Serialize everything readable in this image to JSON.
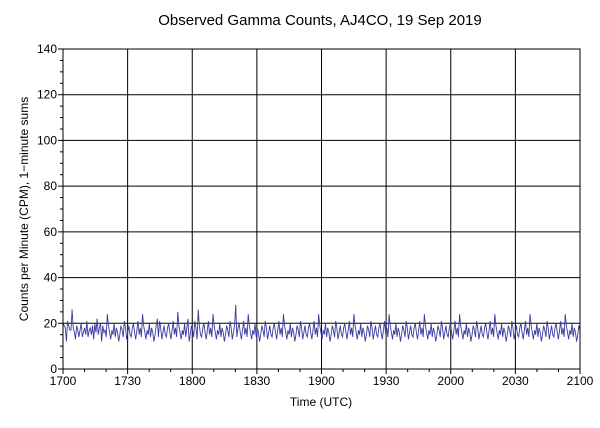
{
  "chart_data": {
    "type": "line",
    "title": "Observed Gamma Counts, AJ4CO, 19 Sep 2019",
    "xlabel": "Time (UTC)",
    "ylabel": "Counts per Minute (CPM), 1−minute sums",
    "x_range": [
      "1700",
      "2100"
    ],
    "ylim": [
      0,
      140
    ],
    "x_ticks": [
      "1700",
      "1730",
      "1800",
      "1830",
      "1900",
      "1930",
      "2000",
      "2030",
      "2100"
    ],
    "y_ticks": [
      0,
      20,
      40,
      60,
      80,
      100,
      120,
      140
    ],
    "grid": true,
    "legend": "none",
    "series": [
      {
        "color": "#3b3ba0",
        "values": [
          20,
          19,
          18,
          12,
          21,
          19,
          17,
          17,
          26,
          18,
          16,
          13,
          19,
          17,
          14,
          17,
          20,
          14,
          16,
          18,
          15,
          21,
          14,
          17,
          18,
          15,
          19,
          13,
          20,
          16,
          22,
          15,
          18,
          20,
          12,
          19,
          16,
          17,
          14,
          24,
          19,
          16,
          13,
          17,
          15,
          20,
          14,
          18,
          16,
          12,
          15,
          19,
          17,
          14,
          21,
          18,
          13,
          16,
          19,
          15,
          14,
          18,
          20,
          16,
          13,
          17,
          21,
          15,
          18,
          14,
          24,
          19,
          16,
          13,
          17,
          15,
          20,
          14,
          18,
          16,
          12,
          15,
          19,
          22,
          14,
          21,
          18,
          13,
          16,
          19,
          15,
          14,
          18,
          20,
          16,
          13,
          17,
          21,
          15,
          18,
          14,
          25,
          19,
          16,
          13,
          17,
          15,
          20,
          14,
          18,
          22,
          12,
          15,
          19,
          17,
          14,
          21,
          18,
          13,
          26,
          19,
          15,
          14,
          18,
          20,
          16,
          13,
          17,
          21,
          15,
          18,
          14,
          24,
          19,
          16,
          13,
          17,
          15,
          20,
          14,
          18,
          16,
          12,
          15,
          19,
          17,
          14,
          21,
          18,
          13,
          16,
          19,
          28,
          14,
          18,
          20,
          16,
          13,
          17,
          21,
          15,
          18,
          14,
          24,
          19,
          16,
          13,
          17,
          15,
          20,
          14,
          18,
          16,
          12,
          15,
          19,
          17,
          14,
          21,
          18,
          13,
          16,
          19,
          15,
          14,
          18,
          20,
          16,
          13,
          17,
          21,
          15,
          18,
          14,
          24,
          19,
          16,
          13,
          17,
          15,
          20,
          14,
          18,
          16,
          12,
          15,
          19,
          17,
          14,
          21,
          18,
          13,
          16,
          19,
          15,
          14,
          18,
          20,
          16,
          13,
          17,
          21,
          15,
          18,
          14,
          24,
          19,
          16,
          13,
          17,
          15,
          20,
          14,
          18,
          16,
          12,
          15,
          19,
          17,
          14,
          21,
          18,
          13,
          16,
          19,
          15,
          14,
          18,
          20,
          16,
          13,
          17,
          21,
          15,
          18,
          14,
          24,
          19,
          16,
          13,
          17,
          15,
          20,
          14,
          18,
          16,
          12,
          15,
          19,
          17,
          14,
          21,
          18,
          13,
          16,
          19,
          15,
          14,
          18,
          20,
          16,
          13,
          17,
          21,
          15,
          18,
          14,
          24,
          19,
          16,
          13,
          17,
          15,
          20,
          14,
          18,
          16,
          12,
          15,
          19,
          17,
          14,
          21,
          18,
          13,
          16,
          19,
          15,
          14,
          18,
          20,
          16,
          13,
          17,
          21,
          15,
          18,
          14,
          24,
          19,
          16,
          13,
          17,
          15,
          20,
          14,
          18,
          16,
          12,
          15,
          19,
          17,
          14,
          21,
          18,
          13,
          16,
          19,
          15,
          14,
          18,
          20,
          16,
          13,
          17,
          21,
          15,
          18,
          14,
          24,
          19,
          16,
          13,
          17,
          15,
          20,
          14,
          18,
          16,
          12,
          15,
          19,
          17,
          14,
          21,
          18,
          13,
          16,
          19,
          15,
          14,
          18,
          20,
          16,
          13,
          17,
          21,
          15,
          18,
          14,
          24,
          19,
          16,
          13,
          17,
          15,
          20,
          14,
          18,
          16,
          12,
          15,
          19,
          17,
          14,
          21,
          18,
          13,
          16,
          19,
          15,
          14,
          18,
          20,
          16,
          13,
          17,
          21,
          15,
          18,
          14,
          24,
          19,
          16,
          13,
          17,
          15,
          20,
          14,
          18,
          16,
          12,
          15,
          19,
          17,
          14,
          21,
          18,
          13,
          16,
          19,
          15,
          14,
          18,
          20,
          16,
          13,
          17,
          21,
          15,
          18,
          14,
          24,
          19,
          16,
          13,
          17,
          15,
          20,
          14,
          18,
          16,
          12,
          15,
          19,
          17
        ]
      }
    ]
  }
}
